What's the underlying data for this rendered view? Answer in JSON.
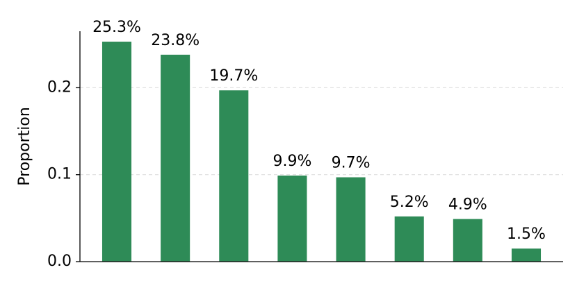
{
  "chart_data": {
    "type": "bar",
    "y_label": "Proportion",
    "categories": [
      null,
      null,
      null,
      null,
      null,
      null,
      null,
      null
    ],
    "values": [
      0.253,
      0.238,
      0.197,
      0.099,
      0.097,
      0.052,
      0.049,
      0.015
    ],
    "value_labels": [
      "25.3%",
      "23.8%",
      "19.7%",
      "9.9%",
      "9.7%",
      "5.2%",
      "4.9%",
      "1.5%"
    ],
    "color": "#2e8b57",
    "ylim": [
      0,
      0.265
    ],
    "yticks": [
      {
        "value": 0,
        "label": "0.0"
      },
      0.1,
      0.2
    ],
    "grid": true
  }
}
